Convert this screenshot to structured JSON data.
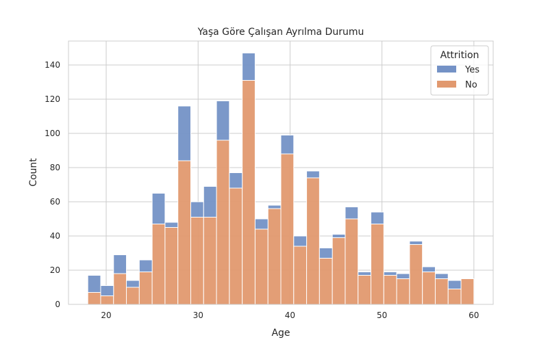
{
  "chart_data": {
    "type": "bar",
    "stacked": true,
    "title": "Yaşa Göre Çalışan Ayrılma Durumu",
    "xlabel": "Age",
    "ylabel": "Count",
    "xlim": [
      15.9,
      62.1
    ],
    "ylim": [
      0,
      154
    ],
    "xticks": [
      20,
      30,
      40,
      50,
      60
    ],
    "yticks": [
      0,
      20,
      40,
      60,
      80,
      100,
      120,
      140
    ],
    "grid": true,
    "legend": {
      "title": "Attrition",
      "placement": "top-right"
    },
    "bin_edges": [
      18,
      19.4,
      20.8,
      22.2,
      23.6,
      25,
      26.4,
      27.8,
      29.2,
      30.6,
      32,
      33.4,
      34.8,
      36.2,
      37.6,
      39,
      40.4,
      41.8,
      43.2,
      44.6,
      46,
      47.4,
      48.8,
      50.2,
      51.6,
      53,
      54.4,
      55.8,
      57.2,
      58.6,
      60
    ],
    "series": [
      {
        "name": "No",
        "color": "#e1996f",
        "values": [
          7,
          5,
          18,
          10,
          19,
          47,
          45,
          84,
          51,
          51,
          96,
          68,
          131,
          44,
          56,
          88,
          34,
          74,
          27,
          39,
          50,
          17,
          47,
          17,
          15,
          35,
          19,
          15,
          9,
          15
        ]
      },
      {
        "name": "Yes",
        "color": "#7492c6",
        "values": [
          10,
          6,
          11,
          4,
          7,
          18,
          3,
          32,
          9,
          18,
          23,
          9,
          16,
          6,
          2,
          11,
          6,
          4,
          6,
          2,
          7,
          2,
          7,
          2,
          3,
          2,
          3,
          3,
          5,
          0
        ]
      }
    ]
  }
}
